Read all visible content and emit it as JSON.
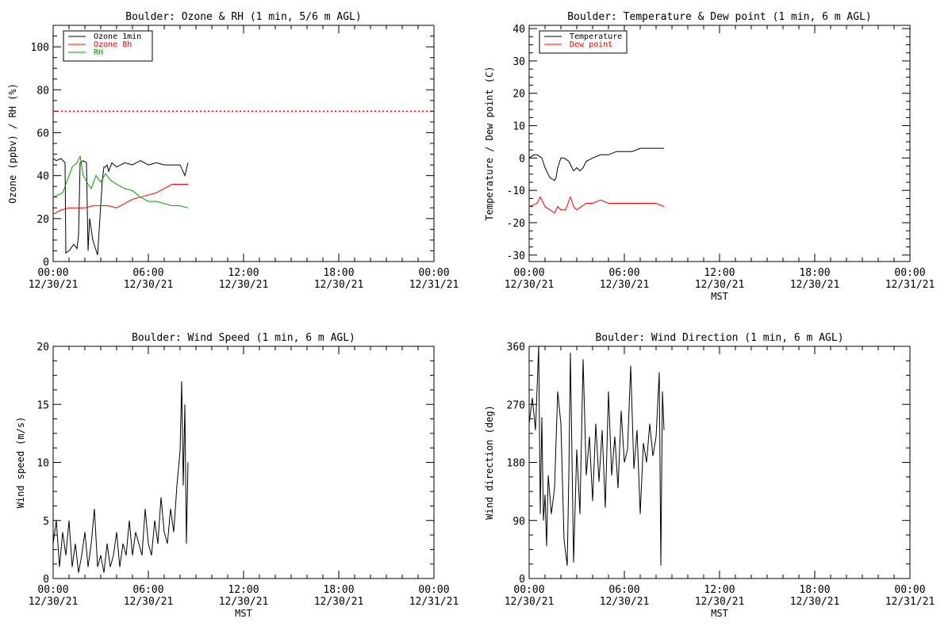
{
  "chart_data": [
    {
      "id": "ozone-rh",
      "type": "line",
      "title": "Boulder: Ozone & RH (1 min, 5/6 m AGL)",
      "xlabel": "",
      "ylabel": "Ozone (ppbv) / RH (%)",
      "xlim_hours": [
        0,
        24
      ],
      "ylim": [
        0,
        110
      ],
      "yticks": [
        0,
        20,
        40,
        60,
        80,
        100
      ],
      "xticks": [
        {
          "hour": 0,
          "time": "00:00",
          "date": "12/30/21"
        },
        {
          "hour": 6,
          "time": "06:00",
          "date": "12/30/21"
        },
        {
          "hour": 12,
          "time": "12:00",
          "date": "12/30/21"
        },
        {
          "hour": 18,
          "time": "18:00",
          "date": "12/30/21"
        },
        {
          "hour": 24,
          "time": "00:00",
          "date": "12/31/21"
        }
      ],
      "legend_position": "top-left",
      "reference_lines": [
        {
          "y": 70,
          "color": "#ff0000",
          "style": "dotted"
        }
      ],
      "series": [
        {
          "name": "Ozone 1min",
          "color": "#000000",
          "x": [
            0,
            0.2,
            0.5,
            0.75,
            0.8,
            1.0,
            1.3,
            1.5,
            1.6,
            1.7,
            1.9,
            2.1,
            2.2,
            2.3,
            2.5,
            2.8,
            3.1,
            3.2,
            3.3,
            3.4,
            3.5,
            3.7,
            4.0,
            4.5,
            5.0,
            5.5,
            6.0,
            6.5,
            7.0,
            7.5,
            8.0,
            8.3,
            8.5
          ],
          "y": [
            48,
            47,
            48,
            46,
            4,
            5,
            8,
            6,
            12,
            46,
            47,
            46,
            5,
            20,
            10,
            3,
            38,
            44,
            44,
            45,
            42,
            46,
            44,
            46,
            45,
            47,
            45,
            46,
            45,
            45,
            45,
            40,
            46
          ]
        },
        {
          "name": "Ozone 8h",
          "color": "#ff0000",
          "x": [
            0,
            0.5,
            1.0,
            1.5,
            2.0,
            2.5,
            3.0,
            3.5,
            4.0,
            4.5,
            5.0,
            5.5,
            6.0,
            6.5,
            7.0,
            7.5,
            8.0,
            8.5
          ],
          "y": [
            22,
            24,
            25,
            25,
            25,
            26,
            26,
            26,
            25,
            27,
            29,
            30,
            31,
            32,
            34,
            36,
            36,
            36
          ]
        },
        {
          "name": "RH",
          "color": "#00a000",
          "x": [
            0,
            0.3,
            0.6,
            0.8,
            1.0,
            1.2,
            1.5,
            1.7,
            1.9,
            2.2,
            2.4,
            2.7,
            3.0,
            3.3,
            3.6,
            4.0,
            4.5,
            5.0,
            5.5,
            6.0,
            6.5,
            7.0,
            7.5,
            8.0,
            8.5
          ],
          "y": [
            30,
            31,
            32,
            36,
            40,
            44,
            46,
            49,
            40,
            36,
            34,
            40,
            37,
            41,
            38,
            36,
            34,
            33,
            30,
            28,
            28,
            27,
            26,
            26,
            25
          ]
        }
      ]
    },
    {
      "id": "temp-dew",
      "type": "line",
      "title": "Boulder: Temperature & Dew point (1 min, 6 m AGL)",
      "xlabel": "MST",
      "ylabel": "Temperature / Dew point (C)",
      "xlim_hours": [
        0,
        24
      ],
      "ylim": [
        -32,
        41
      ],
      "yticks": [
        -30,
        -20,
        -10,
        0,
        10,
        20,
        30,
        40
      ],
      "xticks": [
        {
          "hour": 0,
          "time": "00:00",
          "date": "12/30/21"
        },
        {
          "hour": 6,
          "time": "06:00",
          "date": "12/30/21"
        },
        {
          "hour": 12,
          "time": "12:00",
          "date": "12/30/21"
        },
        {
          "hour": 18,
          "time": "18:00",
          "date": "12/30/21"
        },
        {
          "hour": 24,
          "time": "00:00",
          "date": "12/31/21"
        }
      ],
      "legend_position": "top-left",
      "series": [
        {
          "name": "Temperature",
          "color": "#000000",
          "x": [
            0,
            0.3,
            0.5,
            0.8,
            1.0,
            1.3,
            1.6,
            1.7,
            1.8,
            2.0,
            2.2,
            2.5,
            2.8,
            3.0,
            3.2,
            3.4,
            3.6,
            4.0,
            4.5,
            5.0,
            5.5,
            6.0,
            6.5,
            7.0,
            7.5,
            8.0,
            8.5
          ],
          "y": [
            0,
            1,
            1,
            0,
            -3,
            -6,
            -7,
            -6,
            -3,
            0,
            0,
            -1,
            -4,
            -3,
            -4,
            -3,
            -1,
            0,
            1,
            1,
            2,
            2,
            2,
            3,
            3,
            3,
            3
          ]
        },
        {
          "name": "Dew point",
          "color": "#ff0000",
          "x": [
            0,
            0.5,
            0.7,
            1.0,
            1.3,
            1.6,
            1.8,
            2.0,
            2.3,
            2.6,
            2.8,
            3.0,
            3.3,
            3.6,
            4.0,
            4.5,
            5.0,
            5.5,
            6.0,
            6.5,
            7.0,
            7.5,
            8.0,
            8.5
          ],
          "y": [
            -15,
            -14,
            -12,
            -15,
            -16,
            -17,
            -15,
            -16,
            -16,
            -12,
            -15,
            -16,
            -15,
            -14,
            -14,
            -13,
            -14,
            -14,
            -14,
            -14,
            -14,
            -14,
            -14,
            -15
          ]
        }
      ]
    },
    {
      "id": "wind-speed",
      "type": "line",
      "title": "Boulder: Wind Speed (1 min, 6 m AGL)",
      "xlabel": "MST",
      "ylabel": "Wind speed (m/s)",
      "xlim_hours": [
        0,
        24
      ],
      "ylim": [
        0,
        20
      ],
      "yticks": [
        0,
        5,
        10,
        15,
        20
      ],
      "xticks": [
        {
          "hour": 0,
          "time": "00:00",
          "date": "12/30/21"
        },
        {
          "hour": 6,
          "time": "06:00",
          "date": "12/30/21"
        },
        {
          "hour": 12,
          "time": "12:00",
          "date": "12/30/21"
        },
        {
          "hour": 18,
          "time": "18:00",
          "date": "12/30/21"
        },
        {
          "hour": 24,
          "time": "00:00",
          "date": "12/31/21"
        }
      ],
      "series": [
        {
          "name": "",
          "color": "#000000",
          "x": [
            0,
            0.2,
            0.4,
            0.6,
            0.8,
            1.0,
            1.2,
            1.4,
            1.6,
            1.8,
            2.0,
            2.2,
            2.4,
            2.6,
            2.8,
            3.0,
            3.2,
            3.4,
            3.6,
            3.8,
            4.0,
            4.2,
            4.4,
            4.6,
            4.8,
            5.0,
            5.2,
            5.4,
            5.6,
            5.8,
            6.0,
            6.2,
            6.4,
            6.6,
            6.8,
            7.0,
            7.2,
            7.4,
            7.6,
            7.8,
            8.0,
            8.1,
            8.2,
            8.3,
            8.4,
            8.5
          ],
          "y": [
            3,
            5,
            1,
            4,
            2,
            5,
            1,
            3,
            0.5,
            2,
            4,
            1,
            3,
            6,
            1,
            2,
            0.5,
            3,
            1,
            2,
            4,
            1,
            3,
            2,
            5,
            2,
            4,
            3,
            2,
            6,
            3,
            2,
            5,
            3,
            7,
            4,
            3,
            6,
            4,
            8,
            11,
            17,
            8,
            15,
            3,
            10
          ]
        }
      ]
    },
    {
      "id": "wind-dir",
      "type": "line",
      "title": "Boulder: Wind Direction (1 min, 6 m AGL)",
      "xlabel": "MST",
      "ylabel": "Wind direction (deg)",
      "xlim_hours": [
        0,
        24
      ],
      "ylim": [
        0,
        360
      ],
      "yticks": [
        0,
        90,
        180,
        270,
        360
      ],
      "xticks": [
        {
          "hour": 0,
          "time": "00:00",
          "date": "12/30/21"
        },
        {
          "hour": 6,
          "time": "06:00",
          "date": "12/30/21"
        },
        {
          "hour": 12,
          "time": "12:00",
          "date": "12/30/21"
        },
        {
          "hour": 18,
          "time": "18:00",
          "date": "12/30/21"
        },
        {
          "hour": 24,
          "time": "00:00",
          "date": "12/31/21"
        }
      ],
      "series": [
        {
          "name": "",
          "color": "#000000",
          "x": [
            0,
            0.2,
            0.4,
            0.6,
            0.7,
            0.8,
            0.9,
            1.0,
            1.1,
            1.2,
            1.4,
            1.6,
            1.8,
            2.0,
            2.2,
            2.4,
            2.5,
            2.6,
            2.8,
            3.0,
            3.2,
            3.4,
            3.6,
            3.8,
            4.0,
            4.2,
            4.4,
            4.6,
            4.8,
            5.0,
            5.2,
            5.4,
            5.6,
            5.8,
            6.0,
            6.2,
            6.4,
            6.6,
            6.8,
            7.0,
            7.2,
            7.4,
            7.6,
            7.8,
            8.0,
            8.2,
            8.3,
            8.4,
            8.5
          ],
          "y": [
            240,
            280,
            230,
            360,
            100,
            250,
            90,
            130,
            50,
            160,
            100,
            140,
            290,
            240,
            60,
            20,
            160,
            350,
            25,
            200,
            100,
            340,
            160,
            220,
            120,
            240,
            150,
            230,
            110,
            290,
            160,
            220,
            140,
            260,
            180,
            200,
            330,
            170,
            230,
            100,
            210,
            180,
            240,
            190,
            220,
            320,
            20,
            290,
            230
          ]
        }
      ]
    }
  ]
}
